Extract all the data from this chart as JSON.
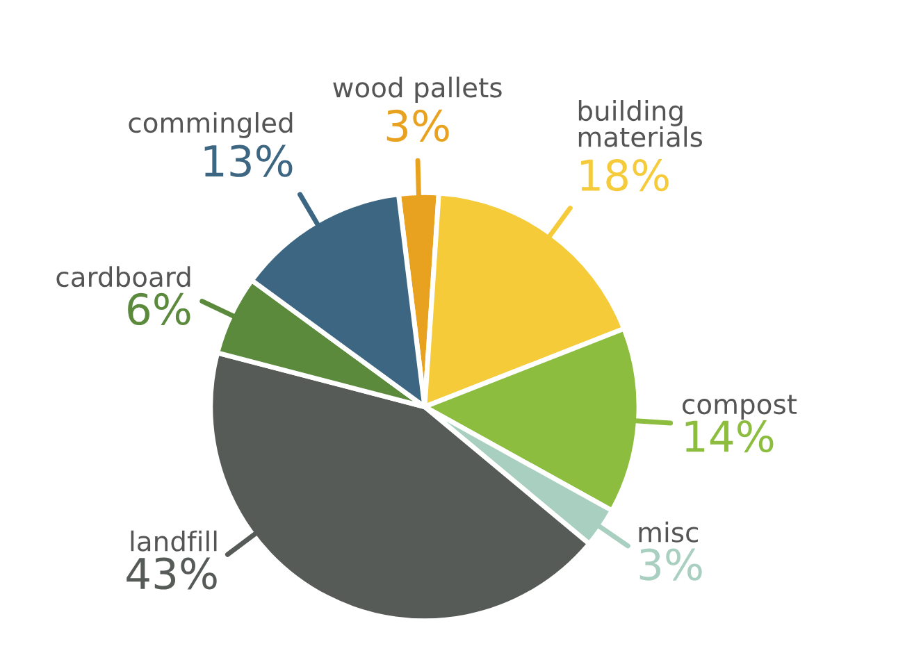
{
  "chart_data": {
    "type": "pie",
    "categories": [
      "wood pallets",
      "building\nmaterials",
      "compost",
      "misc",
      "landfill",
      "cardboard",
      "commingled"
    ],
    "values": [
      3,
      18,
      14,
      3,
      43,
      6,
      13
    ],
    "value_labels": [
      "3%",
      "18%",
      "14%",
      "3%",
      "43%",
      "6%",
      "13%"
    ],
    "colors": [
      "#e8a220",
      "#f5cb3a",
      "#8cbd3f",
      "#a8cfc0",
      "#575b58",
      "#5b8a3c",
      "#3d6682"
    ],
    "legend": false
  }
}
